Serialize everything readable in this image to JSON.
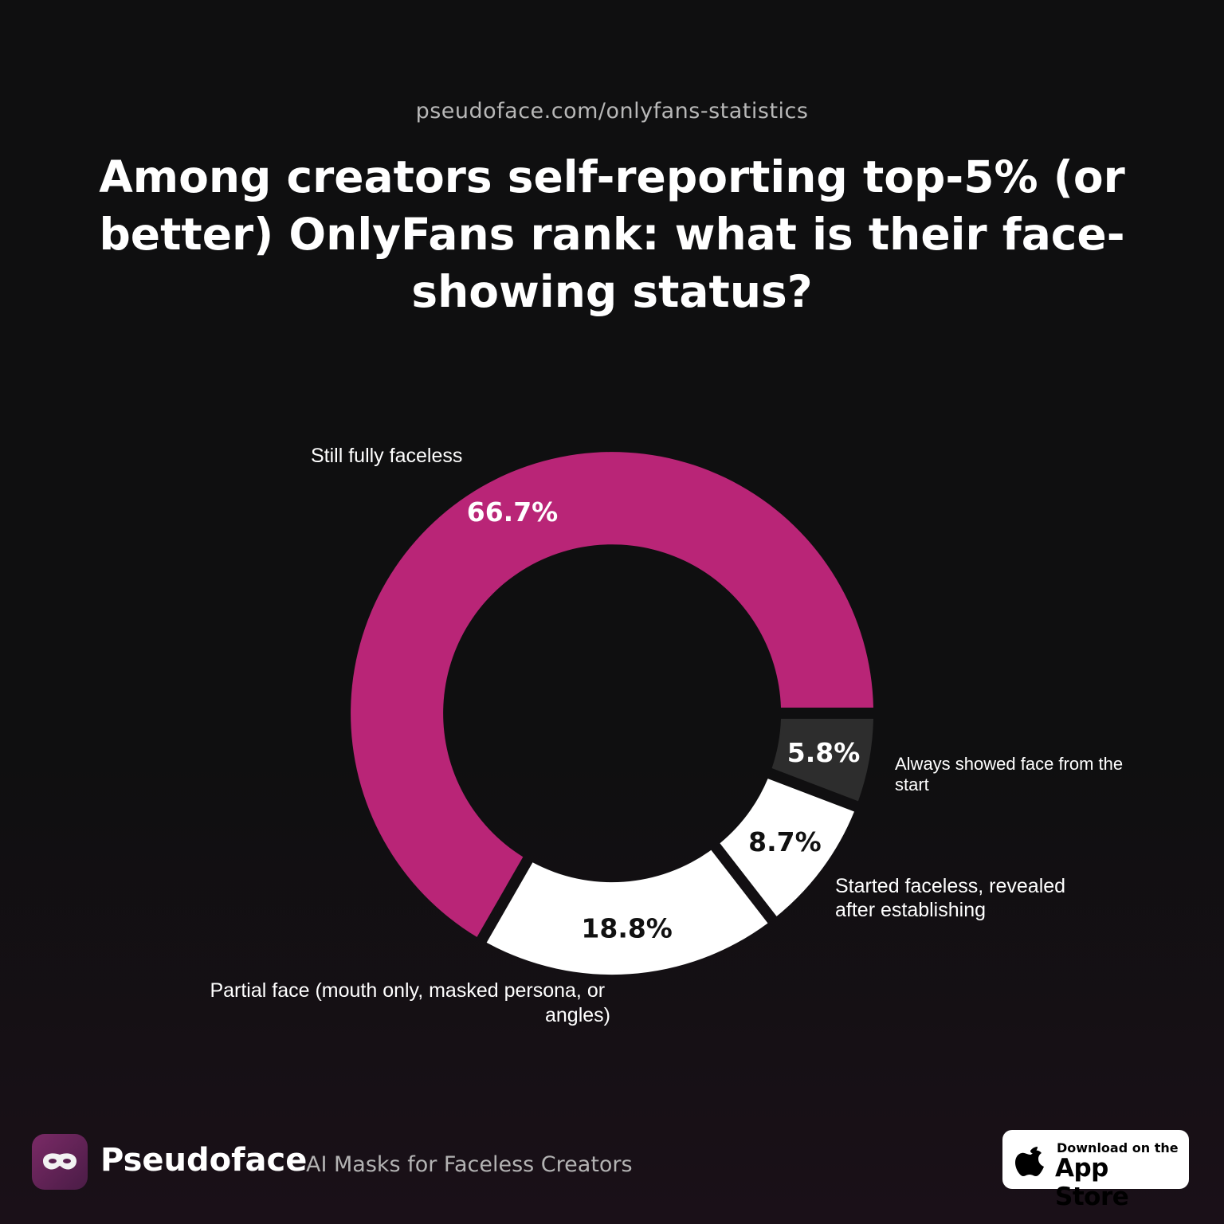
{
  "header": {
    "source": "pseudoface.com/onlyfans-statistics",
    "title": "Among creators self-reporting top-5% (or better) OnlyFans rank: what is their face-showing status?"
  },
  "chart_data": {
    "type": "pie",
    "variant": "donut",
    "categories": [
      "Still fully faceless",
      "Always showed face from the start",
      "Started faceless, revealed after establishing",
      "Partial face (mouth only, masked persona, or angles)"
    ],
    "values": [
      66.7,
      5.8,
      8.7,
      18.8
    ],
    "value_labels": [
      "66.7%",
      "5.8%",
      "8.7%",
      "18.8%"
    ],
    "colors": [
      "#b92577",
      "#2d2d2d",
      "#ffffff",
      "#ffffff"
    ],
    "label_colors": [
      "#ffffff",
      "#ffffff",
      "#111111",
      "#111111"
    ]
  },
  "footer": {
    "brand": "Pseudoface",
    "tagline": "AI Masks for Faceless Creators",
    "logo_icon": "mask-icon",
    "appstore": {
      "icon": "apple-icon",
      "small": "Download on the",
      "big": "App Store"
    }
  }
}
